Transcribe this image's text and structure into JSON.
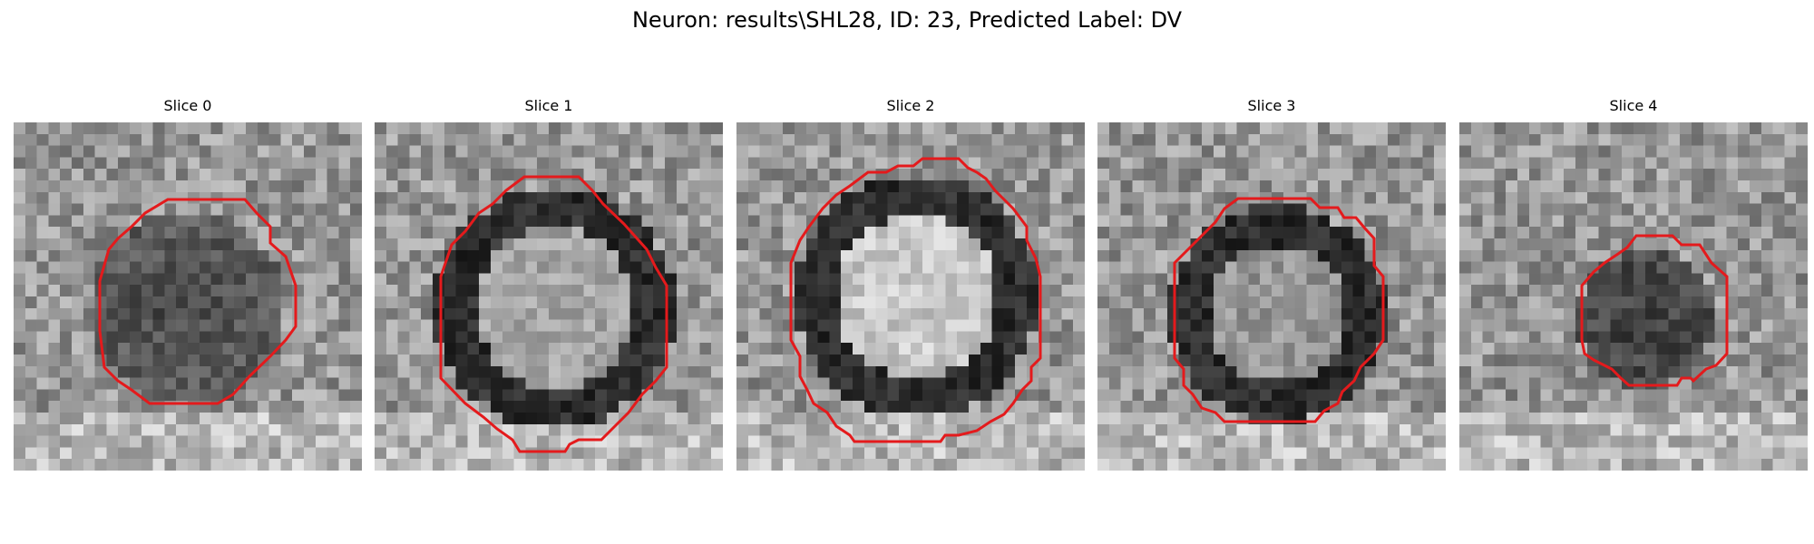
{
  "figure": {
    "title": "Neuron: results\\SHL28, ID: 23, Predicted Label: DV"
  },
  "panels": [
    {
      "title": "Slice 0",
      "image": "grayscale-microscopy-slice",
      "overlay": "red-roi-contour",
      "roi_color": "#e41a1c",
      "appearance": "dark-filled-soma"
    },
    {
      "title": "Slice 1",
      "image": "grayscale-microscopy-slice",
      "overlay": "red-roi-contour",
      "roi_color": "#e41a1c",
      "appearance": "dark-ring-soma"
    },
    {
      "title": "Slice 2",
      "image": "grayscale-microscopy-slice",
      "overlay": "red-roi-contour",
      "roi_color": "#e41a1c",
      "appearance": "dark-ring-soma"
    },
    {
      "title": "Slice 3",
      "image": "grayscale-microscopy-slice",
      "overlay": "red-roi-contour",
      "roi_color": "#e41a1c",
      "appearance": "dark-ring-soma"
    },
    {
      "title": "Slice 4",
      "image": "grayscale-microscopy-slice",
      "overlay": "red-roi-contour",
      "roi_color": "#e41a1c",
      "appearance": "small-dark-soma"
    }
  ]
}
